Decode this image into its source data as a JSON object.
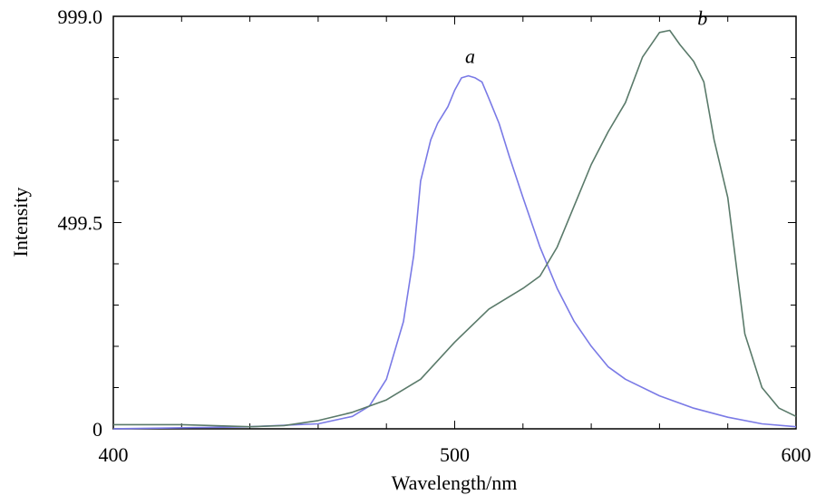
{
  "chart_data": {
    "type": "line",
    "xlabel": "Wavelength/nm",
    "ylabel": "Intensity",
    "xlim": [
      400,
      600
    ],
    "ylim": [
      0,
      999.0
    ],
    "x_ticks": [
      "400",
      "500",
      "600"
    ],
    "y_ticks": [
      "0",
      "499.5",
      "999.0"
    ],
    "grid": false,
    "series": [
      {
        "name": "a",
        "color": "#7a7ae6",
        "x": [
          400,
          440,
          460,
          470,
          475,
          480,
          485,
          488,
          490,
          493,
          495,
          498,
          500,
          502,
          504,
          506,
          508,
          510,
          513,
          516,
          520,
          525,
          530,
          535,
          540,
          545,
          550,
          560,
          570,
          580,
          590,
          600
        ],
        "y": [
          0,
          5,
          12,
          30,
          55,
          120,
          260,
          420,
          600,
          700,
          740,
          780,
          820,
          850,
          855,
          850,
          840,
          800,
          740,
          660,
          560,
          440,
          340,
          260,
          200,
          150,
          120,
          80,
          50,
          28,
          12,
          5
        ]
      },
      {
        "name": "b",
        "color": "#5a7a6a",
        "x": [
          400,
          420,
          440,
          450,
          460,
          470,
          480,
          490,
          500,
          510,
          520,
          525,
          530,
          535,
          540,
          545,
          550,
          555,
          560,
          563,
          566,
          570,
          573,
          576,
          580,
          585,
          590,
          595,
          600
        ],
        "y": [
          10,
          10,
          5,
          8,
          20,
          40,
          70,
          120,
          210,
          290,
          340,
          370,
          440,
          540,
          640,
          720,
          790,
          900,
          960,
          965,
          930,
          890,
          840,
          700,
          560,
          230,
          100,
          50,
          30
        ]
      }
    ]
  }
}
